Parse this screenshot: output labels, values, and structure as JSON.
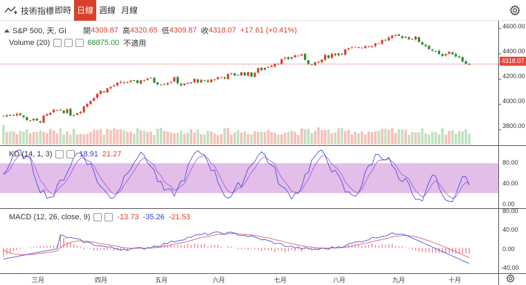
{
  "toolbar": {
    "indicators_label": "技術指標",
    "tabs": [
      {
        "label": "即時",
        "active": false
      },
      {
        "label": "日線",
        "active": true
      },
      {
        "label": "週線",
        "active": false
      },
      {
        "label": "月線",
        "active": false
      }
    ],
    "settings_icon": "gear-icon"
  },
  "price_legend": {
    "symbol": "S&P 500, 天, GI",
    "open_label": "開",
    "open": "4309.87",
    "high_label": "高",
    "high": "4320.65",
    "low_label": "低",
    "low": "4309.87",
    "close_label": "收",
    "close": "4318.07",
    "change": "+17.61 (+0.41%)"
  },
  "volume_legend": {
    "label": "Volume (20)",
    "value": "68875.00",
    "na": "不適用"
  },
  "kd_legend": {
    "label": "KD (14, 1, 3)",
    "k": "18.91",
    "d": "21.27"
  },
  "macd_legend": {
    "label": "MACD (12, 26, close, 9)",
    "hist": "-13.73",
    "macd": "-35.26",
    "signal": "-21.53"
  },
  "price_axis": [
    "4600.00",
    "4400.00",
    "4200.00",
    "4000.00",
    "3800.00"
  ],
  "current_price_tag": "4318.07",
  "kd_axis": [
    "80.00",
    "40.00",
    "0.00"
  ],
  "macd_axis": [
    "80.00",
    "40.00",
    "0.00",
    "-40.00"
  ],
  "months": [
    "三月",
    "四月",
    "五月",
    "六月",
    "七月",
    "八月",
    "九月",
    "十月"
  ],
  "colors": {
    "up": "#d9402b",
    "down": "#2a8a2a",
    "k_line": "#3b4fe0",
    "d_line": "#a85ad8",
    "band": "#d8a6e0",
    "macd_line": "#3b4fe0",
    "signal_line": "#e05a6a"
  },
  "chart_data": [
    {
      "type": "line",
      "name_hint": "price",
      "x": [
        0,
        10,
        20,
        30,
        40,
        50,
        60,
        70,
        80,
        90,
        100,
        110,
        120,
        130,
        140,
        150,
        160,
        170,
        180,
        190,
        200,
        210,
        220,
        230,
        240,
        250,
        260,
        270,
        280,
        290,
        300,
        310,
        320,
        330,
        340,
        350,
        360,
        370,
        380,
        390,
        400,
        410,
        420,
        430,
        440,
        450,
        460,
        470,
        480,
        490,
        500,
        510,
        520,
        530,
        540,
        550,
        560,
        570,
        580,
        590,
        600,
        610,
        620,
        630,
        640,
        650,
        660,
        670,
        678
      ],
      "y": [
        3910,
        3920,
        3940,
        3890,
        3880,
        3860,
        3900,
        3930,
        3960,
        3950,
        3920,
        3950,
        4000,
        4060,
        4100,
        4120,
        4150,
        4160,
        4180,
        4170,
        4190,
        4210,
        4180,
        4170,
        4180,
        4200,
        4150,
        4160,
        4200,
        4170,
        4190,
        4210,
        4220,
        4230,
        4240,
        4250,
        4230,
        4270,
        4290,
        4320,
        4340,
        4350,
        4380,
        4390,
        4360,
        4300,
        4340,
        4380,
        4400,
        4410,
        4430,
        4440,
        4460,
        4470,
        4480,
        4500,
        4520,
        4530,
        4540,
        4530,
        4520,
        4480,
        4450,
        4400,
        4370,
        4430,
        4360,
        4350,
        4318
      ],
      "ylim": [
        3700,
        4650
      ]
    },
    {
      "type": "line",
      "name_hint": "kd",
      "ylim": [
        -10,
        100
      ]
    },
    {
      "type": "line",
      "name_hint": "macd",
      "ylim": [
        -55,
        85
      ]
    }
  ]
}
